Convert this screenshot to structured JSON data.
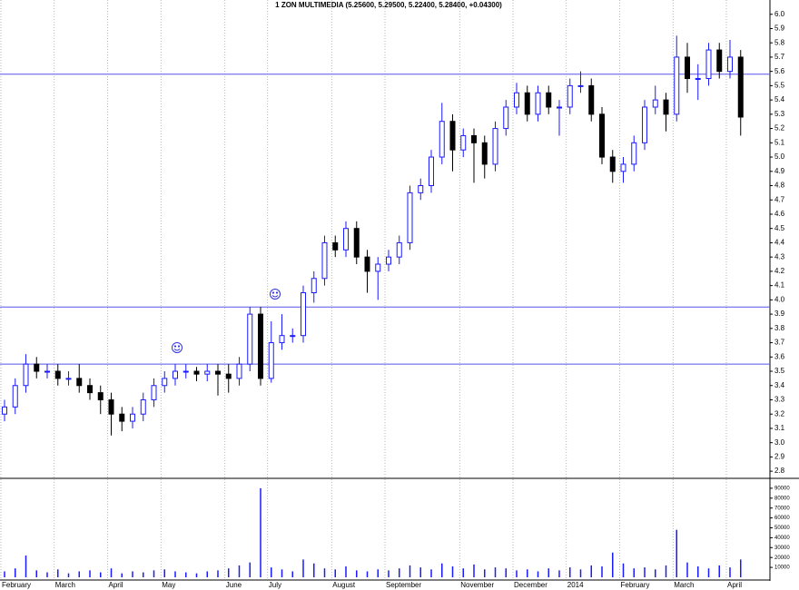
{
  "chart_data": [
    {
      "type": "candlestick",
      "title": "1 ZON MULTIMEDIA (5.25600, 5.29500, 5.22400, 5.28400, +0.04300)",
      "categories": [
        "February",
        null,
        null,
        null,
        null,
        "March",
        null,
        null,
        null,
        null,
        "April",
        null,
        null,
        null,
        null,
        "May",
        null,
        null,
        null,
        null,
        null,
        "June",
        null,
        null,
        null,
        "July",
        null,
        null,
        null,
        null,
        null,
        "August",
        null,
        null,
        null,
        null,
        "September",
        null,
        null,
        null,
        null,
        null,
        null,
        "November",
        null,
        null,
        null,
        null,
        "December",
        null,
        null,
        null,
        null,
        "2014",
        null,
        null,
        null,
        null,
        "February",
        null,
        null,
        null,
        null,
        "March",
        null,
        null,
        null,
        null,
        "April",
        null
      ],
      "open": [
        3.2,
        3.25,
        3.4,
        3.55,
        3.5,
        3.5,
        3.45,
        3.45,
        3.4,
        3.35,
        3.3,
        3.2,
        3.15,
        3.2,
        3.3,
        3.4,
        3.45,
        3.5,
        3.5,
        3.48,
        3.5,
        3.48,
        3.45,
        3.55,
        3.9,
        3.45,
        3.7,
        3.75,
        3.75,
        4.05,
        4.15,
        4.4,
        4.35,
        4.5,
        4.3,
        4.2,
        4.25,
        4.3,
        4.4,
        4.75,
        4.8,
        5.0,
        5.25,
        5.05,
        5.15,
        5.1,
        4.95,
        5.2,
        5.35,
        5.45,
        5.3,
        5.45,
        5.35,
        5.35,
        5.5,
        5.5,
        5.3,
        5.0,
        4.9,
        4.95,
        5.1,
        5.35,
        5.4,
        5.3,
        5.7,
        5.55,
        5.55,
        5.75,
        5.6,
        5.7
      ],
      "high": [
        3.3,
        3.45,
        3.62,
        3.6,
        3.55,
        3.55,
        3.5,
        3.55,
        3.45,
        3.4,
        3.35,
        3.25,
        3.25,
        3.35,
        3.45,
        3.5,
        3.55,
        3.55,
        3.53,
        3.55,
        3.55,
        3.55,
        3.6,
        3.95,
        3.95,
        3.85,
        3.9,
        3.8,
        4.1,
        4.2,
        4.45,
        4.45,
        4.55,
        4.55,
        4.35,
        4.3,
        4.35,
        4.45,
        4.8,
        4.85,
        5.05,
        5.38,
        5.3,
        5.2,
        5.2,
        5.15,
        5.25,
        5.4,
        5.52,
        5.5,
        5.5,
        5.5,
        5.4,
        5.55,
        5.6,
        5.55,
        5.35,
        5.05,
        5.0,
        5.15,
        5.4,
        5.5,
        5.45,
        5.85,
        5.8,
        5.65,
        5.8,
        5.8,
        5.82,
        5.75
      ],
      "low": [
        3.15,
        3.2,
        3.35,
        3.45,
        3.45,
        3.4,
        3.4,
        3.35,
        3.3,
        3.2,
        3.05,
        3.08,
        3.1,
        3.15,
        3.25,
        3.35,
        3.4,
        3.45,
        3.43,
        3.43,
        3.33,
        3.35,
        3.4,
        3.5,
        3.4,
        3.42,
        3.65,
        3.7,
        3.7,
        3.98,
        4.1,
        4.3,
        4.3,
        4.25,
        4.05,
        4.0,
        4.2,
        4.25,
        4.35,
        4.7,
        4.75,
        4.95,
        4.9,
        5.0,
        4.82,
        4.85,
        4.9,
        5.15,
        5.3,
        5.25,
        5.25,
        5.3,
        5.15,
        5.3,
        5.45,
        5.25,
        4.95,
        4.82,
        4.82,
        4.9,
        5.05,
        5.3,
        5.18,
        5.25,
        5.45,
        5.4,
        5.5,
        5.55,
        5.55,
        5.15
      ],
      "close": [
        3.25,
        3.4,
        3.55,
        3.5,
        3.5,
        3.45,
        3.45,
        3.4,
        3.35,
        3.3,
        3.2,
        3.15,
        3.2,
        3.3,
        3.4,
        3.45,
        3.5,
        3.5,
        3.48,
        3.5,
        3.48,
        3.45,
        3.55,
        3.9,
        3.45,
        3.7,
        3.75,
        3.75,
        4.05,
        4.15,
        4.4,
        4.35,
        4.5,
        4.3,
        4.2,
        4.25,
        4.3,
        4.4,
        4.75,
        4.8,
        5.0,
        5.25,
        5.05,
        5.15,
        5.1,
        4.95,
        5.2,
        5.35,
        5.45,
        5.3,
        5.45,
        5.35,
        5.35,
        5.5,
        5.5,
        5.3,
        5.0,
        4.9,
        4.95,
        5.1,
        5.35,
        5.4,
        5.3,
        5.7,
        5.55,
        5.55,
        5.75,
        5.6,
        5.7,
        5.28
      ],
      "up_color": "#1a1aff",
      "down_color": "#000000",
      "hlines": [
        5.58,
        3.95,
        3.55
      ],
      "hline_color": "#5555ee",
      "ylim": [
        2.75,
        6.1
      ],
      "yticks": [
        2.8,
        2.9,
        {
          "value": 3,
          "label": "3.0"
        },
        3.1,
        3.2,
        3.3,
        3.4,
        3.5,
        3.6,
        3.7,
        3.8,
        3.9,
        {
          "value": 4,
          "label": "4.0"
        },
        4.1,
        4.2,
        4.3,
        4.4,
        4.5,
        4.6,
        4.7,
        4.8,
        4.9,
        {
          "value": 5,
          "label": "5.0"
        },
        5.1,
        5.2,
        5.3,
        5.4,
        5.5,
        5.6,
        5.7,
        5.8,
        5.9,
        {
          "value": 6,
          "label": "6.0"
        }
      ]
    },
    {
      "type": "bar",
      "values": [
        6000,
        9000,
        22000,
        7000,
        5000,
        8000,
        4000,
        6000,
        7000,
        5000,
        9000,
        4000,
        6000,
        5000,
        7000,
        8000,
        6000,
        5000,
        4000,
        6000,
        7000,
        9000,
        12000,
        15000,
        90000,
        10000,
        8000,
        6000,
        18000,
        14000,
        9000,
        8000,
        11000,
        7000,
        6000,
        8000,
        7000,
        9000,
        12000,
        10000,
        8000,
        14000,
        11000,
        9000,
        13000,
        8000,
        10000,
        9000,
        7000,
        8000,
        6000,
        9000,
        7000,
        10000,
        8000,
        12000,
        11000,
        25000,
        14000,
        9000,
        10000,
        8000,
        12000,
        48000,
        15000,
        11000,
        9000,
        12000,
        10000,
        18000
      ],
      "color": "#1a1aff",
      "ylim": [
        0,
        100000
      ],
      "yticks": [
        10000,
        20000,
        30000,
        40000,
        50000,
        60000,
        70000,
        80000,
        90000
      ]
    }
  ]
}
